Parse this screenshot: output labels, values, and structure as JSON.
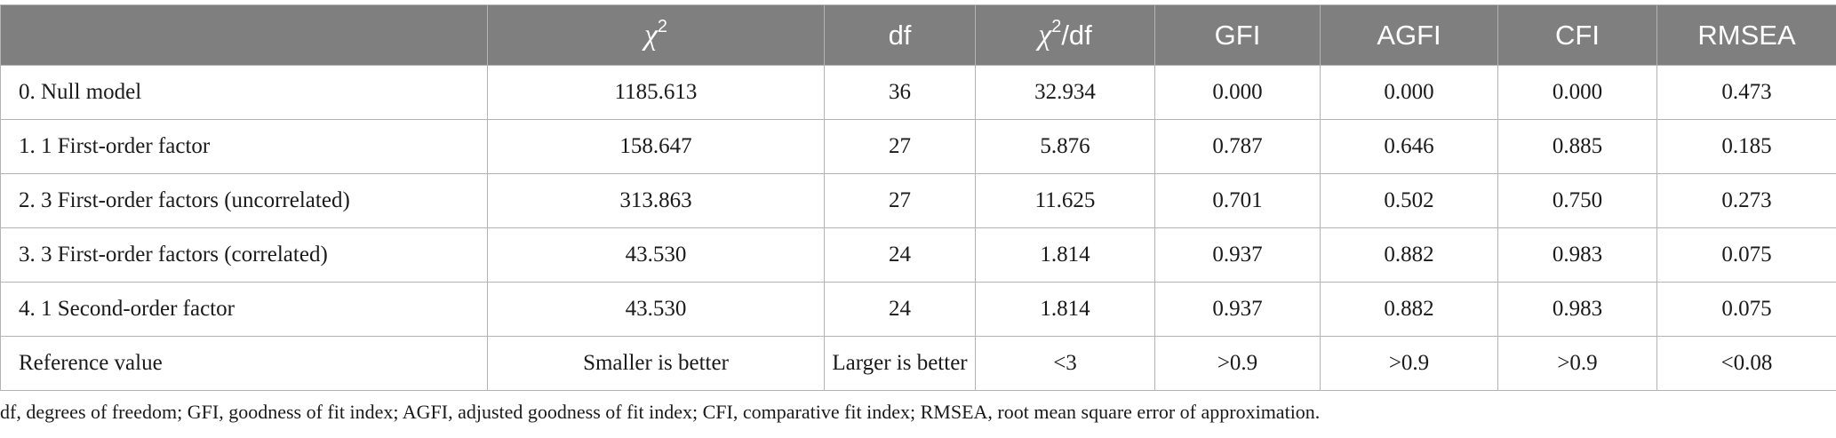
{
  "table": {
    "headers": [
      "",
      "χ²",
      "df",
      "χ²/df",
      "GFI",
      "AGFI",
      "CFI",
      "RMSEA"
    ],
    "header_math": {
      "chi_symbol": "χ",
      "chi_sup": "2",
      "ratio_suffix": "/df"
    },
    "rows": [
      [
        "0. Null model",
        "1185.613",
        "36",
        "32.934",
        "0.000",
        "0.000",
        "0.000",
        "0.473"
      ],
      [
        "1. 1 First-order factor",
        "158.647",
        "27",
        "5.876",
        "0.787",
        "0.646",
        "0.885",
        "0.185"
      ],
      [
        "2. 3 First-order factors (uncorrelated)",
        "313.863",
        "27",
        "11.625",
        "0.701",
        "0.502",
        "0.750",
        "0.273"
      ],
      [
        "3. 3 First-order factors (correlated)",
        "43.530",
        "24",
        "1.814",
        "0.937",
        "0.882",
        "0.983",
        "0.075"
      ],
      [
        "4. 1 Second-order factor",
        "43.530",
        "24",
        "1.814",
        "0.937",
        "0.882",
        "0.983",
        "0.075"
      ],
      [
        "Reference value",
        "Smaller is better",
        "Larger is better",
        "<3",
        ">0.9",
        ">0.9",
        ">0.9",
        "<0.08"
      ]
    ]
  },
  "footnote": "df, degrees of freedom; GFI, goodness of fit index; AGFI, adjusted goodness of fit index; CFI, comparative fit index; RMSEA, root mean square error of approximation.",
  "colors": {
    "header_bg": "#7f7f7f",
    "header_text": "#ffffff",
    "border": "#b3b3b3"
  }
}
